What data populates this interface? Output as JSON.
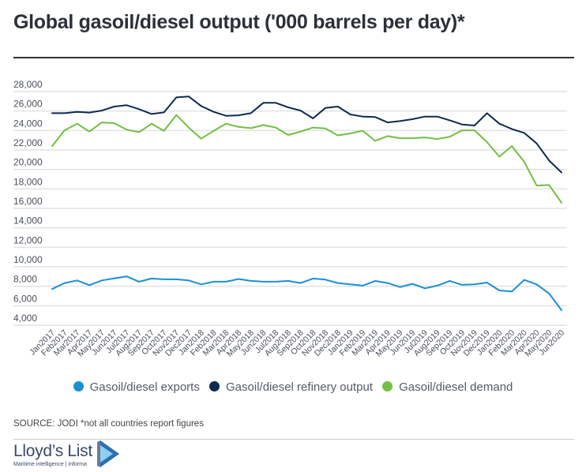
{
  "chart_data": {
    "type": "line",
    "title": "Global gasoil/diesel output ('000 barrels per day)*",
    "xlabel": "",
    "ylabel": "",
    "ylim": [
      4000,
      28000
    ],
    "yticks": [
      "28,000",
      "26,000",
      "24,000",
      "22,000",
      "20,000",
      "18,000",
      "16,000",
      "14,000",
      "12,000",
      "10,000",
      "8,000",
      "6,000",
      "4,000"
    ],
    "ytick_values": [
      28000,
      26000,
      24000,
      22000,
      20000,
      18000,
      16000,
      14000,
      12000,
      10000,
      8000,
      6000,
      4000
    ],
    "grid": true,
    "legend_position": "bottom",
    "x": [
      "Jan2017",
      "Feb2017",
      "Mar2017",
      "Apr2017",
      "May2017",
      "Jun2017",
      "Jul2017",
      "Aug2017",
      "Sep2017",
      "Oct2017",
      "Nov2017",
      "Dec2017",
      "Jan2018",
      "Feb2018",
      "Mar2018",
      "Apr2018",
      "May2018",
      "Jun2018",
      "Jul2018",
      "Aug2018",
      "Sep2018",
      "Oct2018",
      "Nov2018",
      "Dec2018",
      "Jan2019",
      "Feb2019",
      "Mar2019",
      "Apr2019",
      "May2019",
      "Jun2019",
      "Jul2019",
      "Aug2019",
      "Sep2019",
      "Oct2019",
      "Nov2019",
      "Dec2019",
      "Jan2020",
      "Feb2020",
      "Mar2020",
      "Apr2020",
      "May2020",
      "Jun2020"
    ],
    "series": [
      {
        "name": "Gasoil/diesel exports",
        "color": "#1a8fd6",
        "values": [
          7710,
          8330,
          8600,
          8110,
          8600,
          8820,
          9010,
          8470,
          8790,
          8710,
          8710,
          8600,
          8190,
          8470,
          8470,
          8740,
          8550,
          8470,
          8470,
          8550,
          8330,
          8790,
          8680,
          8330,
          8190,
          8060,
          8550,
          8330,
          7920,
          8250,
          7790,
          8060,
          8550,
          8140,
          8190,
          8380,
          7570,
          7460,
          8650,
          8190,
          7250,
          5540
        ]
      },
      {
        "name": "Gasoil/diesel refinery output",
        "color": "#0d2b4e",
        "values": [
          25780,
          25780,
          25920,
          25840,
          26050,
          26460,
          26600,
          26190,
          25700,
          25860,
          27400,
          27490,
          26510,
          25920,
          25510,
          25560,
          25780,
          26840,
          26840,
          26380,
          26050,
          25240,
          26320,
          26460,
          25650,
          25430,
          25380,
          24830,
          24970,
          25160,
          25430,
          25430,
          25050,
          24620,
          24510,
          25780,
          24700,
          24160,
          23750,
          22670,
          20910,
          19690
        ]
      },
      {
        "name": "Gasoil/diesel demand",
        "color": "#72bf44",
        "values": [
          22400,
          24020,
          24700,
          23890,
          24830,
          24750,
          24080,
          23830,
          24700,
          23970,
          25590,
          24300,
          23160,
          23970,
          24700,
          24370,
          24240,
          24560,
          24300,
          23540,
          23890,
          24300,
          24210,
          23490,
          23700,
          23970,
          22940,
          23430,
          23210,
          23210,
          23290,
          23130,
          23350,
          24020,
          24020,
          22810,
          21320,
          22400,
          20780,
          18340,
          18400,
          16580
        ]
      }
    ]
  },
  "source": "SOURCE: JODI *not all countries report figures",
  "logo": {
    "name": "Lloyd’s List",
    "tagline": "Maritime intelligence | informa"
  }
}
